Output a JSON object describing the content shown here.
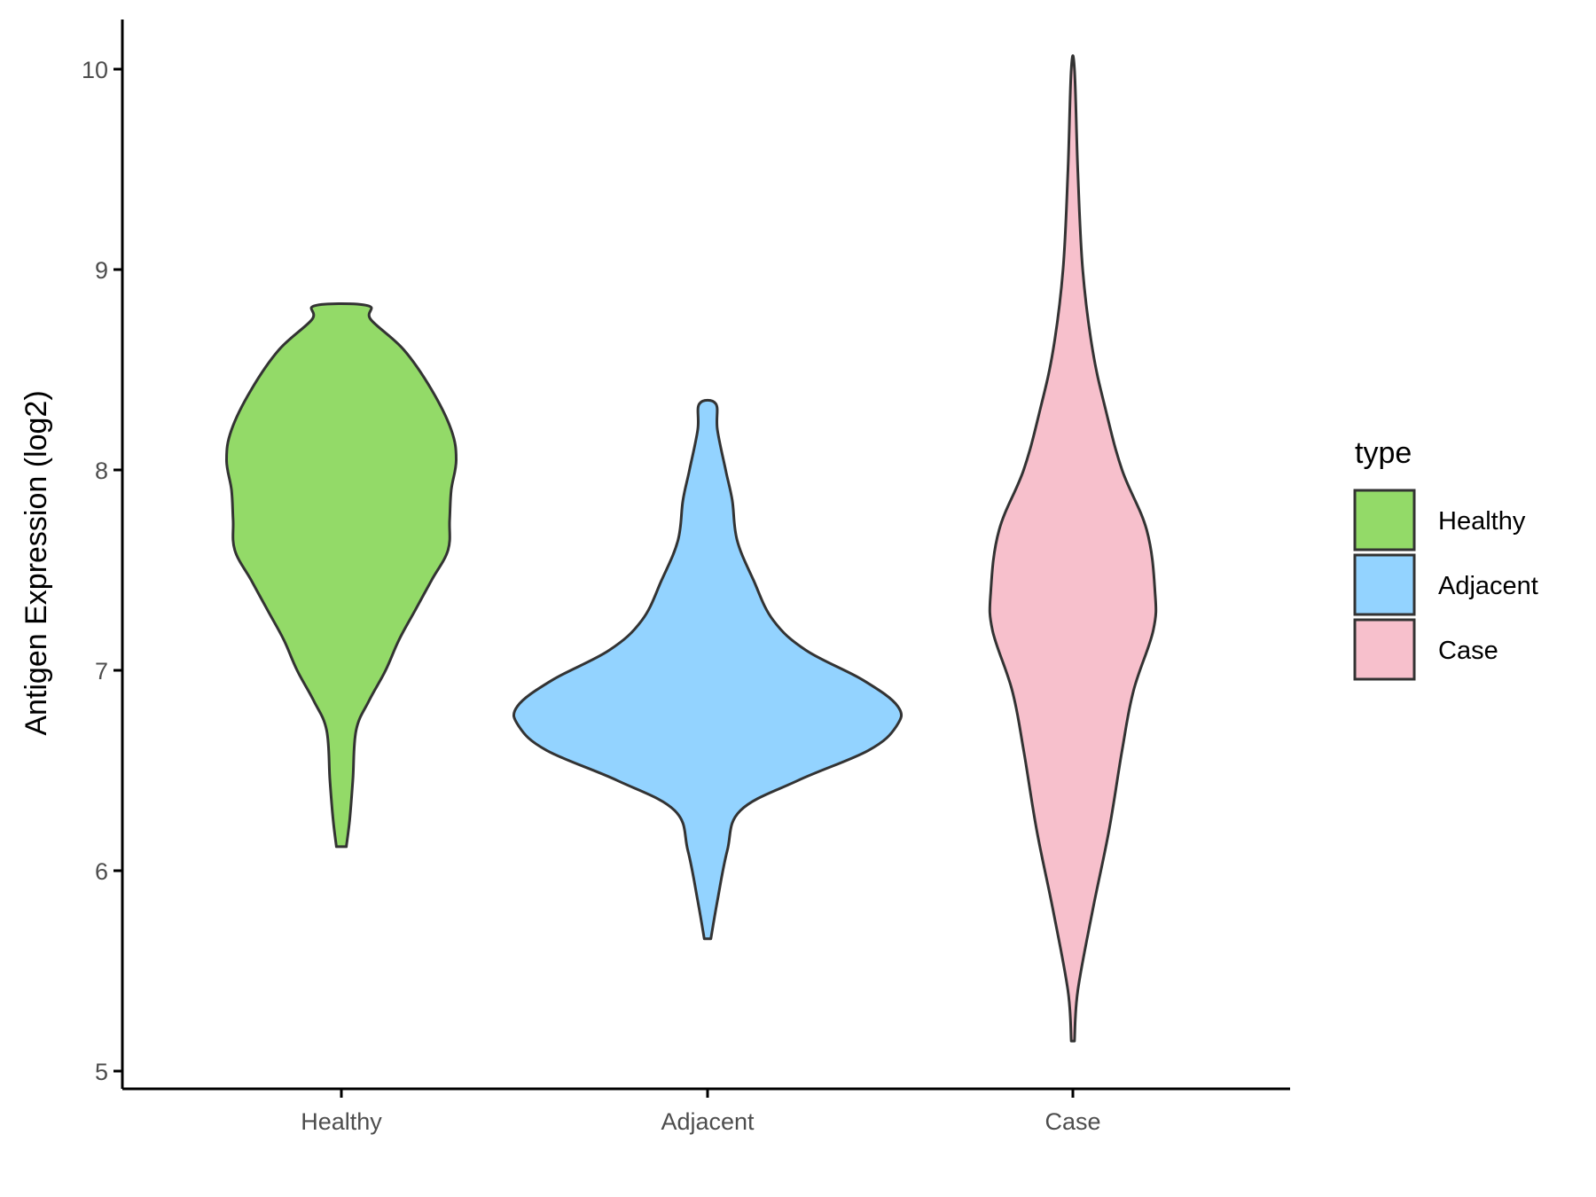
{
  "chart_data": {
    "type": "violin",
    "categories": [
      "Healthy",
      "Adjacent",
      "Case"
    ],
    "ylabel": "Antigen Expression (log2)",
    "xlabel": "",
    "ylim": [
      4.9,
      10.25
    ],
    "yticks": [
      5,
      6,
      7,
      8,
      9,
      10
    ],
    "grid": false,
    "legend": {
      "title": "type",
      "placement": "right",
      "entries": [
        "Healthy",
        "Adjacent",
        "Case"
      ]
    },
    "series": [
      {
        "name": "Healthy",
        "color": "#93DA68",
        "min": 6.12,
        "max": 8.82,
        "density_profile": [
          [
            6.12,
            0.03
          ],
          [
            6.25,
            0.05
          ],
          [
            6.45,
            0.07
          ],
          [
            6.7,
            0.09
          ],
          [
            6.85,
            0.17
          ],
          [
            7.0,
            0.27
          ],
          [
            7.15,
            0.35
          ],
          [
            7.3,
            0.45
          ],
          [
            7.45,
            0.55
          ],
          [
            7.6,
            0.65
          ],
          [
            7.75,
            0.66
          ],
          [
            7.9,
            0.67
          ],
          [
            8.05,
            0.7
          ],
          [
            8.2,
            0.67
          ],
          [
            8.4,
            0.55
          ],
          [
            8.6,
            0.38
          ],
          [
            8.75,
            0.18
          ],
          [
            8.82,
            0.16
          ]
        ]
      },
      {
        "name": "Adjacent",
        "color": "#93D3FF",
        "min": 5.66,
        "max": 8.33,
        "density_profile": [
          [
            5.66,
            0.02
          ],
          [
            5.85,
            0.06
          ],
          [
            6.1,
            0.12
          ],
          [
            6.3,
            0.2
          ],
          [
            6.45,
            0.55
          ],
          [
            6.6,
            0.98
          ],
          [
            6.72,
            1.15
          ],
          [
            6.82,
            1.16
          ],
          [
            6.95,
            0.95
          ],
          [
            7.1,
            0.6
          ],
          [
            7.25,
            0.4
          ],
          [
            7.45,
            0.28
          ],
          [
            7.65,
            0.18
          ],
          [
            7.85,
            0.15
          ],
          [
            8.0,
            0.11
          ],
          [
            8.2,
            0.06
          ],
          [
            8.33,
            0.05
          ]
        ]
      },
      {
        "name": "Case",
        "color": "#F7C0CC",
        "min": 5.15,
        "max": 10.0,
        "density_profile": [
          [
            5.15,
            0.01
          ],
          [
            5.4,
            0.03
          ],
          [
            5.8,
            0.12
          ],
          [
            6.2,
            0.22
          ],
          [
            6.6,
            0.3
          ],
          [
            6.9,
            0.37
          ],
          [
            7.2,
            0.49
          ],
          [
            7.4,
            0.5
          ],
          [
            7.7,
            0.45
          ],
          [
            8.0,
            0.3
          ],
          [
            8.3,
            0.2
          ],
          [
            8.6,
            0.12
          ],
          [
            9.0,
            0.06
          ],
          [
            9.5,
            0.03
          ],
          [
            10.0,
            0.01
          ]
        ]
      }
    ]
  },
  "colors": {
    "outline": "#333333",
    "axis": "#000000"
  }
}
